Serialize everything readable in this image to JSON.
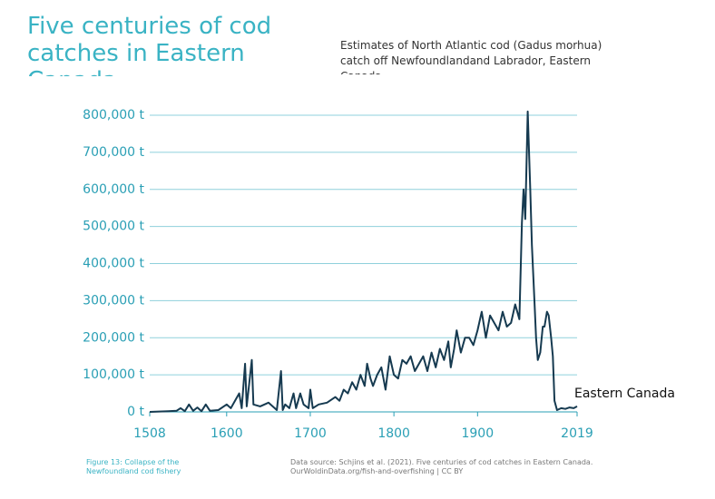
{
  "title": "Five centuries of cod catches in Eastern Canada",
  "caption": "Figure 13: Collapse of the Newfoundland cod fishery",
  "source": "Data source: Schjins et al. (2021). Five centuries of cod catches in Eastern Canada. OurWoldinData.org/fish-and-overfishing | CC BY",
  "chart_data": {
    "type": "line",
    "subtitle": "Estimates of North Atlantic cod (Gadus morhua) catch off Newfoundlandand Labrador, Eastern Canada",
    "xlim": [
      1508,
      2019
    ],
    "xticks": [
      1508,
      1600,
      1700,
      1800,
      1900,
      2019
    ],
    "ylim": [
      0,
      800000
    ],
    "yticks": [
      {
        "value": 0,
        "label": "0 t"
      },
      {
        "value": 100000,
        "label": "100,000 t"
      },
      {
        "value": 200000,
        "label": "200,000 t"
      },
      {
        "value": 300000,
        "label": "300,000 t"
      },
      {
        "value": 400000,
        "label": "400,000 t"
      },
      {
        "value": 500000,
        "label": "500,000 t"
      },
      {
        "value": 600000,
        "label": "600,000 t"
      },
      {
        "value": 700000,
        "label": "700,000 t"
      },
      {
        "value": 800000,
        "label": "800,000 t"
      }
    ],
    "grid": true,
    "x": [
      1508,
      1530,
      1540,
      1545,
      1550,
      1555,
      1560,
      1565,
      1570,
      1575,
      1580,
      1590,
      1600,
      1605,
      1610,
      1615,
      1618,
      1622,
      1624,
      1630,
      1632,
      1640,
      1650,
      1655,
      1660,
      1665,
      1667,
      1670,
      1675,
      1680,
      1683,
      1688,
      1692,
      1698,
      1700,
      1703,
      1710,
      1720,
      1730,
      1735,
      1740,
      1745,
      1750,
      1755,
      1760,
      1765,
      1768,
      1772,
      1775,
      1780,
      1785,
      1790,
      1795,
      1800,
      1805,
      1810,
      1815,
      1820,
      1825,
      1830,
      1835,
      1840,
      1845,
      1850,
      1855,
      1860,
      1865,
      1868,
      1872,
      1875,
      1880,
      1885,
      1890,
      1895,
      1900,
      1905,
      1910,
      1915,
      1920,
      1925,
      1930,
      1935,
      1940,
      1945,
      1950,
      1953,
      1955,
      1957,
      1960,
      1963,
      1965,
      1968,
      1970,
      1972,
      1975,
      1978,
      1980,
      1983,
      1985,
      1988,
      1990,
      1992,
      1995,
      2000,
      2005,
      2010,
      2015,
      2019
    ],
    "series": [
      {
        "name": "Eastern Canada",
        "color": "#163a50",
        "values": [
          0,
          2000,
          3000,
          10000,
          2000,
          20000,
          3000,
          12000,
          2000,
          20000,
          3000,
          5000,
          20000,
          10000,
          30000,
          50000,
          10000,
          130000,
          15000,
          140000,
          20000,
          15000,
          25000,
          15000,
          5000,
          110000,
          5000,
          20000,
          10000,
          50000,
          10000,
          50000,
          20000,
          10000,
          60000,
          10000,
          20000,
          25000,
          40000,
          30000,
          60000,
          50000,
          80000,
          60000,
          100000,
          70000,
          130000,
          90000,
          70000,
          100000,
          120000,
          60000,
          150000,
          100000,
          90000,
          140000,
          130000,
          150000,
          110000,
          130000,
          150000,
          110000,
          160000,
          120000,
          170000,
          140000,
          190000,
          120000,
          170000,
          220000,
          160000,
          200000,
          200000,
          180000,
          220000,
          270000,
          200000,
          260000,
          240000,
          220000,
          270000,
          230000,
          240000,
          290000,
          250000,
          510000,
          600000,
          520000,
          810000,
          600000,
          450000,
          300000,
          200000,
          140000,
          160000,
          230000,
          230000,
          270000,
          260000,
          200000,
          150000,
          30000,
          5000,
          10000,
          8000,
          12000,
          10000,
          15000
        ]
      }
    ]
  }
}
